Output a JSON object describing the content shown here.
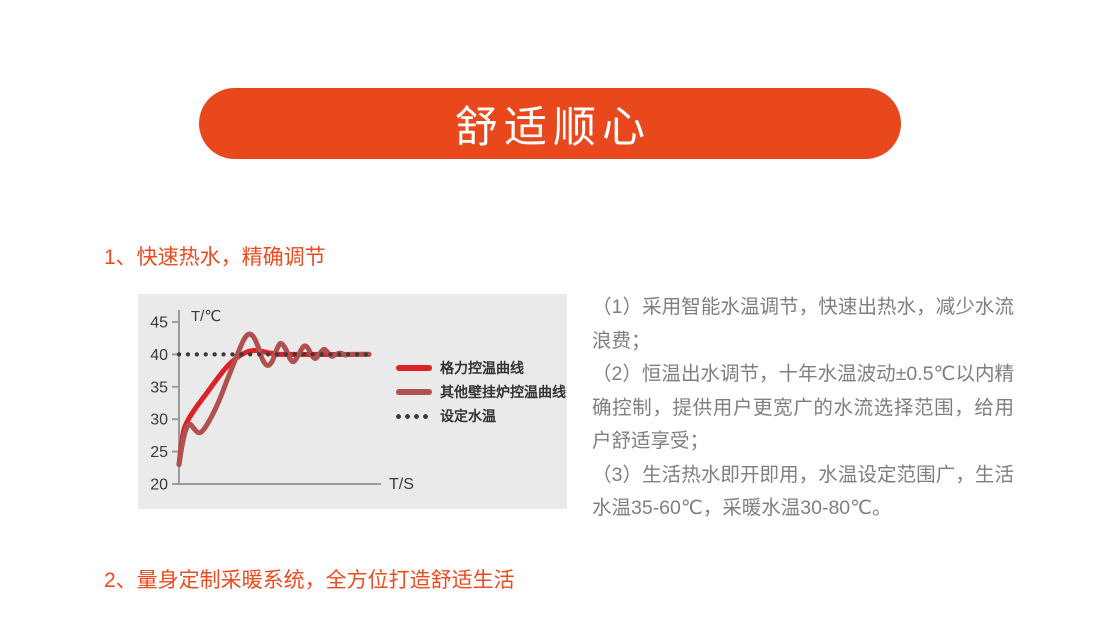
{
  "banner": {
    "title": "舒适顺心",
    "bg_color": "#E8481C"
  },
  "colors": {
    "accent": "#ED4B1F",
    "body_text": "#7F7F7F",
    "chart_background": "#EAEAEA",
    "axis": "#9B9B9B",
    "tick_label": "#3A3A3A"
  },
  "sections": [
    {
      "heading": "1、快速热水，精确调节"
    },
    {
      "heading": "2、量身定制采暖系统，全方位打造舒适生活"
    }
  ],
  "feature_points": [
    "（1）采用智能水温调节，快速出热水，减少水流浪费；",
    "（2）恒温出水调节，十年水温波动±0.5℃以内精确控制，提供用户更宽广的水流选择范围，给用户舒适享受；",
    "（3）生活热水即开即用，水温设定范围广，生活水温35-60℃，采暖水温30-80℃。"
  ],
  "chart_data": {
    "type": "line",
    "title": "",
    "xlabel": "T/S",
    "ylabel": "T/℃",
    "xlim": [
      0,
      100
    ],
    "ylim": [
      20,
      45
    ],
    "yticks": [
      20,
      25,
      30,
      35,
      40,
      45
    ],
    "grid": false,
    "legend_position": "right",
    "series": [
      {
        "name": "格力控温曲线",
        "color": "#DE2126",
        "style": "solid",
        "points": [
          [
            0,
            23
          ],
          [
            1,
            25.5
          ],
          [
            2.5,
            28.3
          ],
          [
            5,
            30
          ],
          [
            9,
            31.8
          ],
          [
            14,
            33.8
          ],
          [
            19,
            35.8
          ],
          [
            24,
            37.7
          ],
          [
            28,
            38.9
          ],
          [
            32,
            39.8
          ],
          [
            36,
            40.4
          ],
          [
            40,
            40.6
          ],
          [
            44,
            40.45
          ],
          [
            48,
            40.2
          ],
          [
            52,
            40.05
          ],
          [
            56,
            40
          ],
          [
            100,
            40
          ]
        ]
      },
      {
        "name": "其他壁挂炉控温曲线",
        "color": "#B0514F",
        "style": "solid",
        "points": [
          [
            0,
            23
          ],
          [
            1.5,
            25.8
          ],
          [
            3,
            27.8
          ],
          [
            4.5,
            28.9
          ],
          [
            6,
            29.2
          ],
          [
            8,
            28.5
          ],
          [
            10.5,
            27.9
          ],
          [
            13,
            28.4
          ],
          [
            16,
            29.8
          ],
          [
            19,
            31.5
          ],
          [
            22,
            33.5
          ],
          [
            25,
            35.8
          ],
          [
            28,
            38
          ],
          [
            31,
            40.2
          ],
          [
            34,
            42.2
          ],
          [
            36.5,
            43.1
          ],
          [
            39,
            42.8
          ],
          [
            41.5,
            41.3
          ],
          [
            44,
            39.2
          ],
          [
            46.5,
            38.3
          ],
          [
            49,
            38.9
          ],
          [
            51.5,
            40.8
          ],
          [
            53.5,
            41.7
          ],
          [
            56,
            40.9
          ],
          [
            58.5,
            39.3
          ],
          [
            60.5,
            38.9
          ],
          [
            63,
            40
          ],
          [
            65.5,
            41.2
          ],
          [
            67.5,
            41.1
          ],
          [
            70,
            39.8
          ],
          [
            72,
            39.4
          ],
          [
            74.5,
            40.3
          ],
          [
            76.5,
            40.8
          ],
          [
            78.5,
            40.2
          ],
          [
            80.5,
            39.7
          ],
          [
            82.5,
            40
          ],
          [
            85,
            40.2
          ],
          [
            87.5,
            39.9
          ],
          [
            90,
            40
          ],
          [
            100,
            40
          ]
        ]
      },
      {
        "name": "设定水温",
        "color": "#3A3A3A",
        "style": "dotted",
        "points": [
          [
            0,
            40
          ],
          [
            100,
            40
          ]
        ]
      }
    ]
  }
}
